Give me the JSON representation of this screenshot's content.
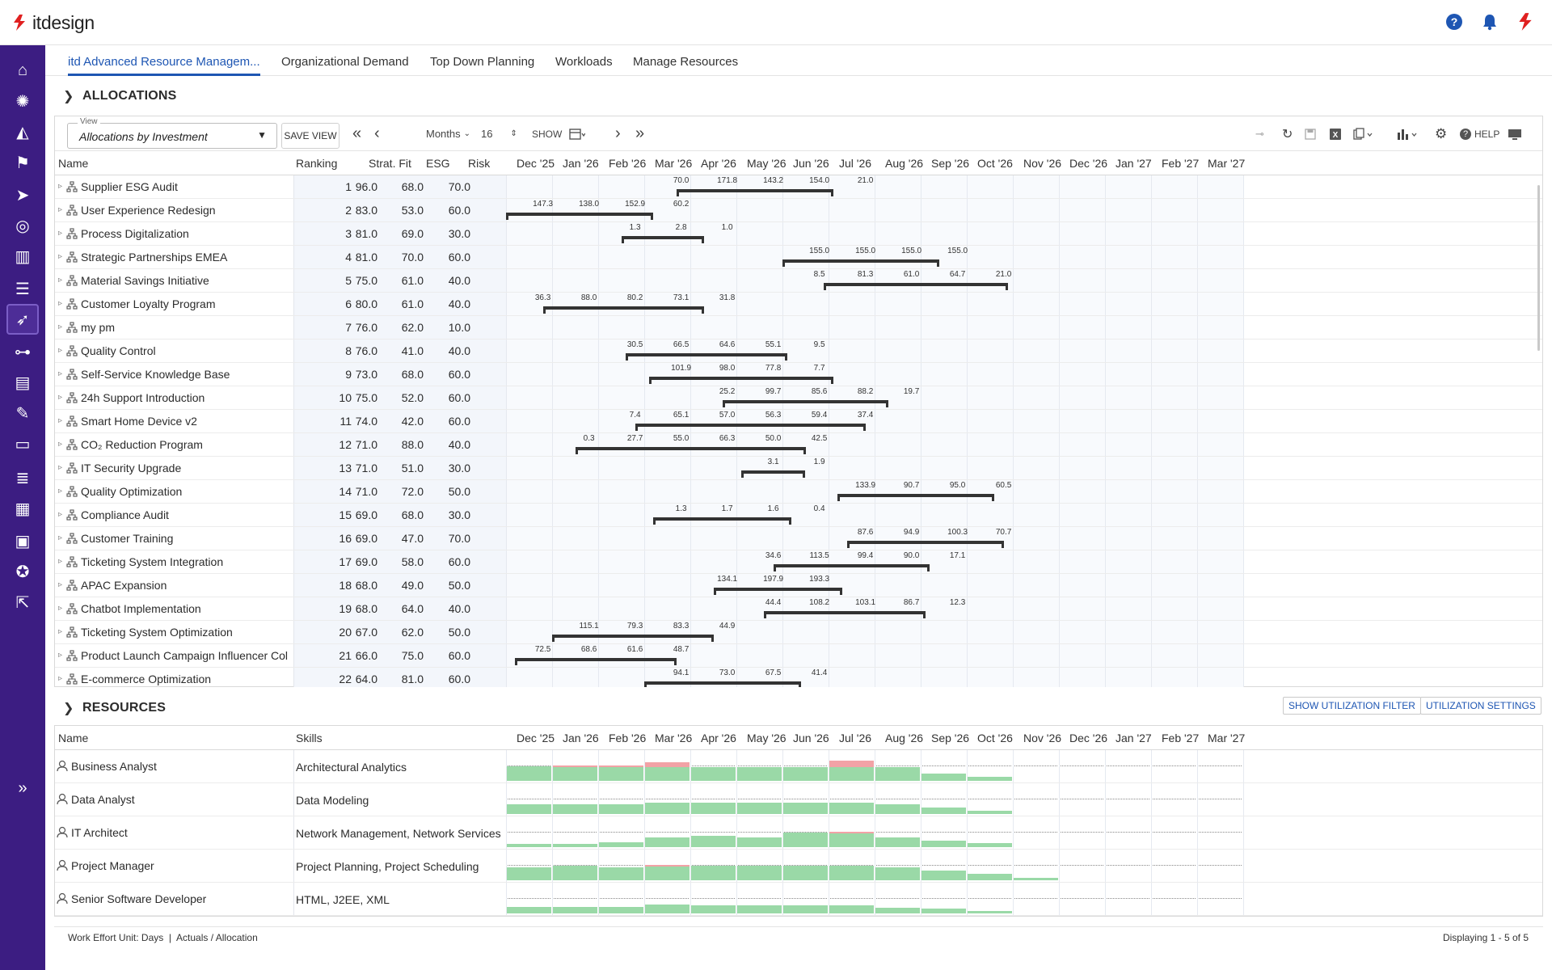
{
  "brand": {
    "name": "itdesign",
    "accent": "#e02020",
    "sidebar_bg": "#3c1d82",
    "link_color": "#1e56b3"
  },
  "header_icons": [
    "help-icon",
    "bell-icon",
    "itdesign-logo-icon"
  ],
  "sidebar_icons": [
    "home-icon",
    "lightbulb-icon",
    "chart-area-icon",
    "flag-icon",
    "send-icon",
    "target-icon",
    "bar-chart-icon",
    "checklist-icon",
    "rocket-icon",
    "org-chart-icon",
    "book-icon",
    "clipboard-edit-icon",
    "monitor-icon",
    "list-icon",
    "building-icon",
    "id-card-icon",
    "user-settings-icon",
    "external-link-icon",
    "expand-icon"
  ],
  "tabs": [
    {
      "label": "itd Advanced Resource Managem...",
      "active": true
    },
    {
      "label": "Organizational Demand"
    },
    {
      "label": "Top Down Planning"
    },
    {
      "label": "Workloads"
    },
    {
      "label": "Manage Resources"
    }
  ],
  "allocations": {
    "title": "ALLOCATIONS",
    "view_label": "View",
    "view_value": "Allocations by Investment",
    "save_view": "SAVE VIEW",
    "period_unit": "Months",
    "period_count": "16",
    "show_label": "SHOW",
    "help_label": "HELP",
    "columns": {
      "name": "Name",
      "ranking": "Ranking",
      "strat_fit": "Strat. Fit",
      "esg": "ESG",
      "risk": "Risk"
    },
    "months": [
      "Dec '25",
      "Jan '26",
      "Feb '26",
      "Mar '26",
      "Apr '26",
      "May '26",
      "Jun '26",
      "Jul '26",
      "Aug '26",
      "Sep '26",
      "Oct '26",
      "Nov '26",
      "Dec '26",
      "Jan '27",
      "Feb '27",
      "Mar '27"
    ],
    "rows": [
      {
        "name": "Supplier ESG Audit",
        "ranking": "1",
        "strat": "96.0",
        "esg": "68.0",
        "risk": "70.0",
        "bar": [
          3.7,
          7.1
        ],
        "labels": [
          [
            3.8,
            "70.0"
          ],
          [
            4.8,
            "171.8"
          ],
          [
            5.8,
            "143.2"
          ],
          [
            6.8,
            "154.0"
          ],
          [
            7.8,
            "21.0"
          ]
        ]
      },
      {
        "name": "User Experience Redesign",
        "ranking": "2",
        "strat": "83.0",
        "esg": "53.0",
        "risk": "60.0",
        "bar": [
          0.0,
          3.2
        ],
        "labels": [
          [
            0.8,
            "147.3"
          ],
          [
            1.8,
            "138.0"
          ],
          [
            2.8,
            "152.9"
          ],
          [
            3.8,
            "60.2"
          ]
        ]
      },
      {
        "name": "Process Digitalization",
        "ranking": "3",
        "strat": "81.0",
        "esg": "69.0",
        "risk": "30.0",
        "bar": [
          2.5,
          4.3
        ],
        "labels": [
          [
            2.8,
            "1.3"
          ],
          [
            3.8,
            "2.8"
          ],
          [
            4.8,
            "1.0"
          ]
        ]
      },
      {
        "name": "Strategic Partnerships EMEA",
        "ranking": "4",
        "strat": "81.0",
        "esg": "70.0",
        "risk": "60.0",
        "bar": [
          6.0,
          9.4
        ],
        "labels": [
          [
            6.8,
            "155.0"
          ],
          [
            7.8,
            "155.0"
          ],
          [
            8.8,
            "155.0"
          ],
          [
            9.8,
            "155.0"
          ]
        ]
      },
      {
        "name": "Material Savings Initiative",
        "ranking": "5",
        "strat": "75.0",
        "esg": "61.0",
        "risk": "40.0",
        "bar": [
          6.9,
          10.9
        ],
        "labels": [
          [
            6.8,
            "8.5"
          ],
          [
            7.8,
            "81.3"
          ],
          [
            8.8,
            "61.0"
          ],
          [
            9.8,
            "64.7"
          ],
          [
            10.8,
            "21.0"
          ]
        ]
      },
      {
        "name": "Customer Loyalty Program",
        "ranking": "6",
        "strat": "80.0",
        "esg": "61.0",
        "risk": "40.0",
        "bar": [
          0.8,
          4.3
        ],
        "labels": [
          [
            0.8,
            "36.3"
          ],
          [
            1.8,
            "88.0"
          ],
          [
            2.8,
            "80.2"
          ],
          [
            3.8,
            "73.1"
          ],
          [
            4.8,
            "31.8"
          ]
        ]
      },
      {
        "name": "my pm",
        "ranking": "7",
        "strat": "76.0",
        "esg": "62.0",
        "risk": "10.0",
        "bar": null,
        "labels": []
      },
      {
        "name": "Quality Control",
        "ranking": "8",
        "strat": "76.0",
        "esg": "41.0",
        "risk": "40.0",
        "bar": [
          2.6,
          6.1
        ],
        "labels": [
          [
            2.8,
            "30.5"
          ],
          [
            3.8,
            "66.5"
          ],
          [
            4.8,
            "64.6"
          ],
          [
            5.8,
            "55.1"
          ],
          [
            6.8,
            "9.5"
          ]
        ]
      },
      {
        "name": "Self-Service Knowledge Base",
        "ranking": "9",
        "strat": "73.0",
        "esg": "68.0",
        "risk": "60.0",
        "bar": [
          3.1,
          7.1
        ],
        "labels": [
          [
            3.8,
            "101.9"
          ],
          [
            4.8,
            "98.0"
          ],
          [
            5.8,
            "77.8"
          ],
          [
            6.8,
            "7.7"
          ]
        ]
      },
      {
        "name": "24h Support Introduction",
        "ranking": "10",
        "strat": "75.0",
        "esg": "52.0",
        "risk": "60.0",
        "bar": [
          4.7,
          8.3
        ],
        "labels": [
          [
            4.8,
            "25.2"
          ],
          [
            5.8,
            "99.7"
          ],
          [
            6.8,
            "85.6"
          ],
          [
            7.8,
            "88.2"
          ],
          [
            8.8,
            "19.7"
          ]
        ]
      },
      {
        "name": "Smart Home Device v2",
        "ranking": "11",
        "strat": "74.0",
        "esg": "42.0",
        "risk": "60.0",
        "bar": [
          2.8,
          7.8
        ],
        "labels": [
          [
            2.8,
            "7.4"
          ],
          [
            3.8,
            "65.1"
          ],
          [
            4.8,
            "57.0"
          ],
          [
            5.8,
            "56.3"
          ],
          [
            6.8,
            "59.4"
          ],
          [
            7.8,
            "37.4"
          ]
        ]
      },
      {
        "name": "CO₂ Reduction Program",
        "ranking": "12",
        "strat": "71.0",
        "esg": "88.0",
        "risk": "40.0",
        "bar": [
          1.5,
          6.5
        ],
        "labels": [
          [
            1.8,
            "0.3"
          ],
          [
            2.8,
            "27.7"
          ],
          [
            3.8,
            "55.0"
          ],
          [
            4.8,
            "66.3"
          ],
          [
            5.8,
            "50.0"
          ],
          [
            6.8,
            "42.5"
          ]
        ]
      },
      {
        "name": "IT Security Upgrade",
        "ranking": "13",
        "strat": "71.0",
        "esg": "51.0",
        "risk": "30.0",
        "bar": [
          5.1,
          6.5
        ],
        "labels": [
          [
            5.8,
            "3.1"
          ],
          [
            6.8,
            "1.9"
          ]
        ]
      },
      {
        "name": "Quality Optimization",
        "ranking": "14",
        "strat": "71.0",
        "esg": "72.0",
        "risk": "50.0",
        "bar": [
          7.2,
          10.6
        ],
        "labels": [
          [
            7.8,
            "133.9"
          ],
          [
            8.8,
            "90.7"
          ],
          [
            9.8,
            "95.0"
          ],
          [
            10.8,
            "60.5"
          ]
        ]
      },
      {
        "name": "Compliance Audit",
        "ranking": "15",
        "strat": "69.0",
        "esg": "68.0",
        "risk": "30.0",
        "bar": [
          3.2,
          6.2
        ],
        "labels": [
          [
            3.8,
            "1.3"
          ],
          [
            4.8,
            "1.7"
          ],
          [
            5.8,
            "1.6"
          ],
          [
            6.8,
            "0.4"
          ]
        ]
      },
      {
        "name": "Customer Training",
        "ranking": "16",
        "strat": "69.0",
        "esg": "47.0",
        "risk": "70.0",
        "bar": [
          7.4,
          10.8
        ],
        "labels": [
          [
            7.8,
            "87.6"
          ],
          [
            8.8,
            "94.9"
          ],
          [
            9.8,
            "100.3"
          ],
          [
            10.8,
            "70.7"
          ]
        ]
      },
      {
        "name": "Ticketing System Integration",
        "ranking": "17",
        "strat": "69.0",
        "esg": "58.0",
        "risk": "60.0",
        "bar": [
          5.8,
          9.2
        ],
        "labels": [
          [
            5.8,
            "34.6"
          ],
          [
            6.8,
            "113.5"
          ],
          [
            7.8,
            "99.4"
          ],
          [
            8.8,
            "90.0"
          ],
          [
            9.8,
            "17.1"
          ]
        ]
      },
      {
        "name": "APAC Expansion",
        "ranking": "18",
        "strat": "68.0",
        "esg": "49.0",
        "risk": "50.0",
        "bar": [
          4.5,
          7.3
        ],
        "labels": [
          [
            4.8,
            "134.1"
          ],
          [
            5.8,
            "197.9"
          ],
          [
            6.8,
            "193.3"
          ]
        ]
      },
      {
        "name": "Chatbot Implementation",
        "ranking": "19",
        "strat": "68.0",
        "esg": "64.0",
        "risk": "40.0",
        "bar": [
          5.6,
          9.1
        ],
        "labels": [
          [
            5.8,
            "44.4"
          ],
          [
            6.8,
            "108.2"
          ],
          [
            7.8,
            "103.1"
          ],
          [
            8.8,
            "86.7"
          ],
          [
            9.8,
            "12.3"
          ]
        ]
      },
      {
        "name": "Ticketing System Optimization",
        "ranking": "20",
        "strat": "67.0",
        "esg": "62.0",
        "risk": "50.0",
        "bar": [
          1.0,
          4.5
        ],
        "labels": [
          [
            1.8,
            "115.1"
          ],
          [
            2.8,
            "79.3"
          ],
          [
            3.8,
            "83.3"
          ],
          [
            4.8,
            "44.9"
          ]
        ]
      },
      {
        "name": "Product Launch Campaign Influencer Col",
        "ranking": "21",
        "strat": "66.0",
        "esg": "75.0",
        "risk": "60.0",
        "bar": [
          0.2,
          3.7
        ],
        "labels": [
          [
            0.8,
            "72.5"
          ],
          [
            1.8,
            "68.6"
          ],
          [
            2.8,
            "61.6"
          ],
          [
            3.8,
            "48.7"
          ]
        ]
      },
      {
        "name": "E-commerce Optimization",
        "ranking": "22",
        "strat": "64.0",
        "esg": "81.0",
        "risk": "60.0",
        "bar": [
          3.0,
          6.4
        ],
        "labels": [
          [
            3.8,
            "94.1"
          ],
          [
            4.8,
            "73.0"
          ],
          [
            5.8,
            "67.5"
          ],
          [
            6.8,
            "41.4"
          ]
        ]
      }
    ]
  },
  "resources": {
    "title": "RESOURCES",
    "show_filter": "SHOW UTILIZATION FILTER",
    "settings": "UTILIZATION SETTINGS",
    "columns": {
      "name": "Name",
      "skills": "Skills"
    },
    "rows": [
      {
        "name": "Business Analyst",
        "skills": "Architectural Analytics",
        "util": [
          0.45,
          0.45,
          0.45,
          0.55,
          0.42,
          0.42,
          0.42,
          0.6,
          0.42,
          0.22,
          0.12,
          0,
          0,
          0,
          0,
          0
        ],
        "over": [
          0,
          0.08,
          0.08,
          0.2,
          0,
          0,
          0,
          0.25,
          0,
          0,
          0,
          0,
          0,
          0,
          0,
          0
        ]
      },
      {
        "name": "Data Analyst",
        "skills": "Data Modeling",
        "util": [
          0.3,
          0.3,
          0.3,
          0.35,
          0.35,
          0.35,
          0.35,
          0.35,
          0.3,
          0.2,
          0.1,
          0,
          0,
          0,
          0,
          0
        ],
        "over": [
          0,
          0,
          0,
          0,
          0,
          0,
          0,
          0,
          0,
          0,
          0,
          0,
          0,
          0,
          0,
          0
        ]
      },
      {
        "name": "IT Architect",
        "skills": "Network Management, Network Services",
        "util": [
          0.1,
          0.1,
          0.15,
          0.3,
          0.35,
          0.3,
          0.45,
          0.5,
          0.3,
          0.2,
          0.12,
          0,
          0,
          0,
          0,
          0
        ],
        "over": [
          0,
          0,
          0,
          0,
          0,
          0,
          0,
          0.06,
          0,
          0,
          0,
          0,
          0,
          0,
          0,
          0
        ]
      },
      {
        "name": "Project Manager",
        "skills": "Project Planning, Project Scheduling",
        "util": [
          0.4,
          0.45,
          0.4,
          0.5,
          0.45,
          0.45,
          0.5,
          0.45,
          0.4,
          0.3,
          0.2,
          0.08,
          0,
          0,
          0,
          0
        ],
        "over": [
          0,
          0,
          0,
          0.06,
          0,
          0,
          0,
          0,
          0,
          0,
          0,
          0,
          0,
          0,
          0,
          0
        ]
      },
      {
        "name": "Senior Software Developer",
        "skills": "HTML, J2EE, XML",
        "util": [
          0.2,
          0.2,
          0.2,
          0.28,
          0.25,
          0.25,
          0.25,
          0.25,
          0.18,
          0.15,
          0.08,
          0,
          0,
          0,
          0,
          0
        ],
        "over": [
          0,
          0,
          0,
          0,
          0,
          0,
          0,
          0,
          0,
          0,
          0,
          0,
          0,
          0,
          0,
          0
        ]
      }
    ]
  },
  "status": {
    "left": "Work Effort Unit: Days  |  Actuals / Allocation",
    "right": "Displaying 1 - 5 of 5"
  }
}
